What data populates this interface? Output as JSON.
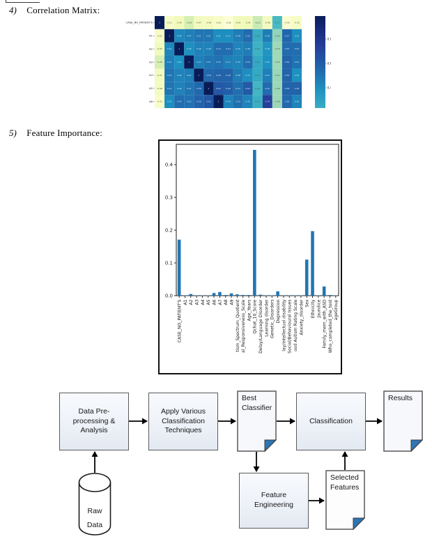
{
  "page": {
    "item4_number": "4)",
    "item4_title": "Correlation Matrix:",
    "item5_number": "5)",
    "item5_title": "Feature Importance:"
  },
  "chart_data": [
    {
      "type": "heatmap",
      "title": "",
      "row_labels": [
        "CASE_NO_PATIENT'S",
        "A1",
        "A2",
        "A3",
        "A4",
        "A5",
        "A6"
      ],
      "col_labels_visible": false,
      "values": [
        [
          1,
          -0.51,
          -0.45,
          -0.28,
          -0.47,
          -0.48,
          -0.52,
          -0.58,
          -0.45,
          -0.45,
          -0.22,
          -0.48,
          0.17,
          -0.55,
          -0.5
        ],
        [
          -0.51,
          1,
          0.44,
          0.47,
          0.51,
          0.51,
          0.41,
          0.41,
          0.48,
          0.55,
          0.25,
          0.48,
          -0.05,
          0.57,
          0.41
        ],
        [
          -0.45,
          0.44,
          1,
          0.4,
          0.46,
          0.46,
          0.54,
          0.54,
          0.45,
          0.48,
          0.22,
          0.38,
          -0.09,
          0.55,
          0.54
        ],
        [
          -0.28,
          0.47,
          0.4,
          1,
          0.47,
          0.51,
          0.52,
          0.47,
          0.45,
          0.54,
          0.27,
          0.4,
          -0.09,
          0.58,
          0.52
        ],
        [
          -0.47,
          0.51,
          0.46,
          0.47,
          1,
          0.56,
          0.58,
          0.58,
          0.48,
          0.41,
          0.27,
          0.47,
          -0.07,
          0.58,
          0.4
        ],
        [
          -0.48,
          0.51,
          0.46,
          0.51,
          0.56,
          1,
          0.63,
          0.6,
          0.53,
          0.62,
          0.2,
          0.55,
          -0.08,
          0.58,
          0.58
        ],
        [
          -0.52,
          0.41,
          0.54,
          0.52,
          0.58,
          0.63,
          1,
          0.45,
          0.53,
          0.45,
          0.23,
          0.74,
          -0.08,
          0.56,
          0.45
        ]
      ],
      "colormap": "YlGnBu",
      "vmin": -0.6,
      "vmax": 1.0,
      "colorbar_ticks": [
        "0.8",
        "0.6",
        "0.4"
      ],
      "legend_position": "right"
    },
    {
      "type": "bar",
      "title": "",
      "xlabel": "",
      "ylabel": "",
      "categories": [
        "CASE_NO_PATIENT'S",
        "A1",
        "A2",
        "A3",
        "A4",
        "A5",
        "A6",
        "A7",
        "A8",
        "A9",
        "tism_Spectrum_Quotient",
        "al_Responsiveness_Scale",
        "Age_Years",
        "Qchat_10_Score",
        "Delay/Language Disorder",
        "Learning disorder",
        "Genetic_Disorders",
        "Depression",
        "lay/intellectual disability",
        "Social/Behavioural Issues",
        "ood Autism Rating Scale",
        "Anxiety_disorder",
        "Sex",
        "Ethnicity",
        "Jaundice",
        "Family_mem_with_ASD",
        "Who_completed_the_test",
        "ageGroup"
      ],
      "values": [
        0.171,
        0.001,
        0.005,
        0.001,
        0.001,
        0.001,
        0.008,
        0.011,
        0.002,
        0.007,
        0.004,
        0.002,
        0.002,
        0.445,
        0.003,
        0.001,
        0.001,
        0.013,
        0.001,
        0.001,
        0.001,
        0.001,
        0.11,
        0.197,
        0.001,
        0.028,
        0.002,
        0.001
      ],
      "yticks": [
        "0.0",
        "0.1",
        "0.2",
        "0.3",
        "0.4"
      ],
      "ylim": [
        0,
        0.462
      ],
      "bar_color": "#2077b4",
      "grid": false,
      "legend": false
    }
  ],
  "flowchart": {
    "nodes": [
      {
        "id": "preprocess",
        "shape": "rect",
        "label": "Data Pre-processing & Analysis"
      },
      {
        "id": "apply",
        "shape": "rect",
        "label": "Apply Various Classification Techniques"
      },
      {
        "id": "best",
        "shape": "document",
        "label": "Best Classifier"
      },
      {
        "id": "classification",
        "shape": "rect",
        "label": "Classification"
      },
      {
        "id": "results",
        "shape": "document",
        "label": "Results"
      },
      {
        "id": "rawdata",
        "shape": "cylinder",
        "label": "Raw Data"
      },
      {
        "id": "featureeng",
        "shape": "rect",
        "label": "Feature Engineering"
      },
      {
        "id": "selected",
        "shape": "document",
        "label": "Selected Features"
      }
    ],
    "fold_color": "#2e75b6",
    "edges": [
      "rawdata->preprocess",
      "preprocess->apply",
      "apply->best",
      "best->classification",
      "classification->results",
      "best->featureeng",
      "featureeng->selected",
      "selected->classification"
    ]
  }
}
